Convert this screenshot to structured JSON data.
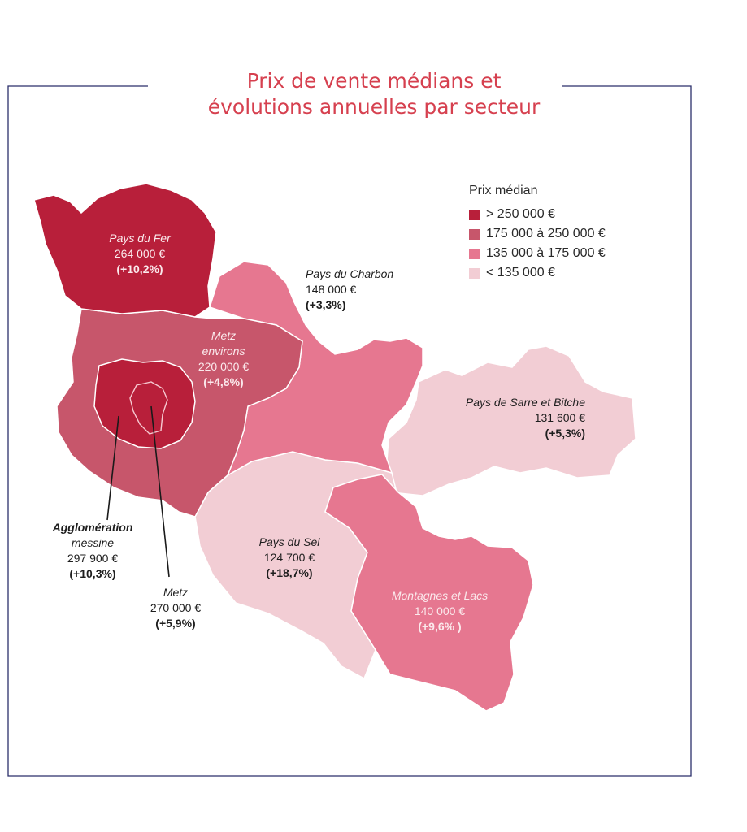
{
  "title": {
    "line1": "Prix de vente médians et",
    "line2": "évolutions annuelles par secteur"
  },
  "legend": {
    "title": "Prix médian",
    "items": [
      {
        "label": "> 250 000 €",
        "color": "#b81f3a"
      },
      {
        "label": "175 000 à 250 000 €",
        "color": "#c7566b"
      },
      {
        "label": "135 000 à 175 000 €",
        "color": "#e67790"
      },
      {
        "label": "< 135 000 €",
        "color": "#f2cdd4"
      }
    ]
  },
  "colors": {
    "title": "#d6404f",
    "frame": "#2b2f6b",
    "border_white": "#ffffff"
  },
  "sectors": {
    "pays_du_fer": {
      "name": "Pays du Fer",
      "price": "264 000 €",
      "change": "(+10,2%)"
    },
    "pays_du_charbon": {
      "name": "Pays du Charbon",
      "price": "148 000 €",
      "change": "(+3,3%)"
    },
    "metz_environs": {
      "name_line1": "Metz",
      "name_line2": "environs",
      "price": "220 000 €",
      "change": "(+4,8%)"
    },
    "pays_de_sarre": {
      "name": "Pays de Sarre et Bitche",
      "price": "131 600 €",
      "change": "(+5,3%)"
    },
    "agglomeration": {
      "name_line1": "Agglomération",
      "name_line2": "messine",
      "price": "297 900 €",
      "change": "(+10,3%)"
    },
    "metz": {
      "name": "Metz",
      "price": "270 000 €",
      "change": "(+5,9%)"
    },
    "pays_du_sel": {
      "name": "Pays du Sel",
      "price": "124 700 €",
      "change": "(+18,7%)"
    },
    "montagnes": {
      "name": "Montagnes et Lacs",
      "price": "140 000 €",
      "change": "(+9,6%  )"
    }
  }
}
